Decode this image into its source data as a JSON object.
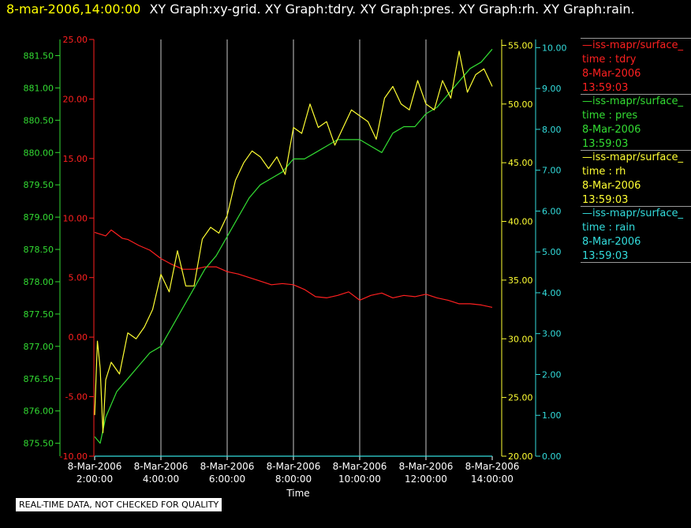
{
  "header": {
    "timestamp": "8-mar-2006,14:00:00",
    "graphs": "XY Graph:xy-grid.  XY Graph:tdry.  XY Graph:pres.  XY Graph:rh.  XY Graph:rain."
  },
  "footer": {
    "quality_note": "REAL-TIME DATA, NOT CHECKED FOR QUALITY"
  },
  "legend": [
    {
      "source": "—iss-mapr/surface_",
      "var": "time : tdry",
      "date": "8-Mar-2006",
      "time": "13:59:03",
      "color": "#ff2020"
    },
    {
      "source": "—iss-mapr/surface_",
      "var": "time : pres",
      "date": "8-Mar-2006",
      "time": "13:59:03",
      "color": "#33dd33"
    },
    {
      "source": "—iss-mapr/surface_",
      "var": "time : rh",
      "date": "8-Mar-2006",
      "time": "13:59:03",
      "color": "#ffff33"
    },
    {
      "source": "—iss-mapr/surface_",
      "var": "time : rain",
      "date": "8-Mar-2006",
      "time": "13:59:03",
      "color": "#33dddd"
    }
  ],
  "chart_data": {
    "type": "line",
    "xlabel": "Time",
    "x_ticks": [
      [
        "8-Mar-2006",
        "2:00:00"
      ],
      [
        "8-Mar-2006",
        "4:00:00"
      ],
      [
        "8-Mar-2006",
        "6:00:00"
      ],
      [
        "8-Mar-2006",
        "8:00:00"
      ],
      [
        "8-Mar-2006",
        "10:00:00"
      ],
      [
        "8-Mar-2006",
        "12:00:00"
      ],
      [
        "8-Mar-2006",
        "14:00:00"
      ]
    ],
    "xlim": [
      "8-Mar-2006 2:00:00",
      "8-Mar-2006 14:00:00"
    ],
    "grid": "vertical",
    "axes": {
      "tdry": {
        "color": "#ff2020",
        "range": [
          -10,
          25
        ],
        "ticks": [
          "-10.00",
          "-5.00",
          "0.00",
          "5.00",
          "10.00",
          "15.00",
          "20.00",
          "25.00"
        ]
      },
      "pres": {
        "color": "#33dd33",
        "range": [
          875.3,
          881.75
        ],
        "ticks": [
          "875.50",
          "876.00",
          "876.50",
          "877.00",
          "877.50",
          "878.00",
          "878.50",
          "879.00",
          "879.50",
          "880.00",
          "880.50",
          "881.00",
          "881.50"
        ]
      },
      "rh": {
        "color": "#ffff33",
        "range": [
          20,
          55.5
        ],
        "ticks": [
          "20.00",
          "25.00",
          "30.00",
          "35.00",
          "40.00",
          "45.00",
          "50.00",
          "55.00"
        ]
      },
      "rain": {
        "color": "#33dddd",
        "range": [
          0,
          10.2
        ],
        "ticks": [
          "0.00",
          "1.00",
          "2.00",
          "3.00",
          "4.00",
          "5.00",
          "6.00",
          "7.00",
          "8.00",
          "9.00",
          "10.00"
        ]
      }
    },
    "series": [
      {
        "name": "time : tdry",
        "axis": "tdry",
        "x": [
          "2:00",
          "2:20",
          "2:30",
          "2:50",
          "3:00",
          "3:20",
          "3:40",
          "4:00",
          "4:20",
          "4:40",
          "5:00",
          "5:20",
          "5:40",
          "6:00",
          "6:20",
          "6:40",
          "7:00",
          "7:20",
          "7:40",
          "8:00",
          "8:20",
          "8:40",
          "9:00",
          "9:20",
          "9:40",
          "10:00",
          "10:20",
          "10:40",
          "11:00",
          "11:20",
          "11:40",
          "12:00",
          "12:20",
          "12:40",
          "13:00",
          "13:20",
          "13:40",
          "14:00"
        ],
        "values": [
          8.8,
          8.5,
          9.0,
          8.3,
          8.2,
          7.7,
          7.3,
          6.6,
          6.1,
          5.7,
          5.7,
          5.9,
          5.9,
          5.5,
          5.3,
          5.0,
          4.7,
          4.4,
          4.5,
          4.4,
          4.0,
          3.4,
          3.3,
          3.5,
          3.8,
          3.1,
          3.5,
          3.7,
          3.3,
          3.5,
          3.4,
          3.6,
          3.3,
          3.1,
          2.8,
          2.8,
          2.7,
          2.5
        ]
      },
      {
        "name": "time : pres",
        "axis": "pres",
        "x": [
          "2:00",
          "2:10",
          "2:20",
          "2:30",
          "2:40",
          "3:00",
          "3:20",
          "3:40",
          "4:00",
          "4:20",
          "4:40",
          "5:00",
          "5:20",
          "5:40",
          "6:00",
          "6:20",
          "6:40",
          "7:00",
          "7:20",
          "7:40",
          "8:00",
          "8:20",
          "8:40",
          "9:00",
          "9:20",
          "9:40",
          "10:00",
          "10:20",
          "10:40",
          "11:00",
          "11:20",
          "11:40",
          "12:00",
          "12:20",
          "12:40",
          "13:00",
          "13:20",
          "13:40",
          "14:00"
        ],
        "values": [
          875.6,
          875.5,
          875.9,
          876.1,
          876.3,
          876.5,
          876.7,
          876.9,
          877.0,
          877.3,
          877.6,
          877.9,
          878.2,
          878.4,
          878.7,
          879.0,
          879.3,
          879.5,
          879.6,
          879.7,
          879.9,
          879.9,
          880.0,
          880.1,
          880.2,
          880.2,
          880.2,
          880.1,
          880.0,
          880.3,
          880.4,
          880.4,
          880.6,
          880.7,
          880.9,
          881.1,
          881.3,
          881.4,
          881.6
        ]
      },
      {
        "name": "time : rh",
        "axis": "rh",
        "x": [
          "2:00",
          "2:05",
          "2:10",
          "2:15",
          "2:20",
          "2:30",
          "2:45",
          "3:00",
          "3:15",
          "3:30",
          "3:45",
          "4:00",
          "4:15",
          "4:30",
          "4:45",
          "5:00",
          "5:15",
          "5:30",
          "5:45",
          "6:00",
          "6:15",
          "6:30",
          "6:45",
          "7:00",
          "7:15",
          "7:30",
          "7:45",
          "8:00",
          "8:15",
          "8:30",
          "8:45",
          "9:00",
          "9:15",
          "9:30",
          "9:45",
          "10:00",
          "10:15",
          "10:30",
          "10:45",
          "11:00",
          "11:15",
          "11:30",
          "11:45",
          "12:00",
          "12:15",
          "12:30",
          "12:45",
          "13:00",
          "13:15",
          "13:30",
          "13:45",
          "14:00"
        ],
        "values": [
          23.5,
          29.8,
          27.5,
          22.0,
          26.5,
          28.0,
          27.0,
          30.5,
          30.0,
          31.0,
          32.5,
          35.5,
          34.0,
          37.5,
          34.5,
          34.5,
          38.5,
          39.5,
          39.0,
          40.5,
          43.5,
          45.0,
          46.0,
          45.5,
          44.5,
          45.5,
          44.0,
          48.0,
          47.5,
          50.0,
          48.0,
          48.5,
          46.5,
          48.0,
          49.5,
          49.0,
          48.5,
          47.0,
          50.5,
          51.5,
          50.0,
          49.5,
          52.0,
          50.0,
          49.5,
          52.0,
          50.5,
          54.5,
          51.0,
          52.5,
          53.0,
          51.5
        ]
      },
      {
        "name": "time : rain",
        "axis": "rain",
        "x": [
          "2:00",
          "14:00"
        ],
        "values": [
          0.0,
          0.0
        ]
      }
    ]
  }
}
